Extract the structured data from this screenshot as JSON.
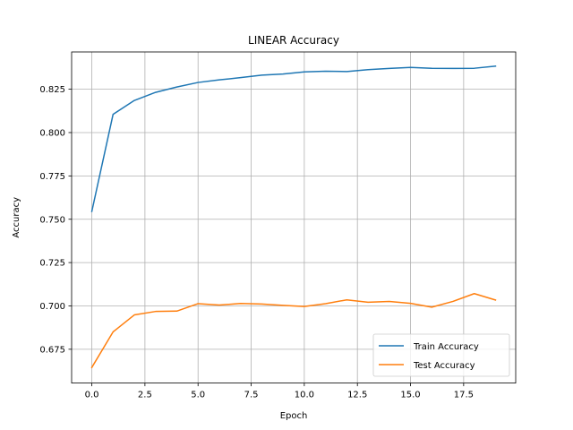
{
  "chart_data": {
    "type": "line",
    "title": "LINEAR Accuracy",
    "xlabel": "Epoch",
    "ylabel": "Accuracy",
    "xlim": [
      -0.95,
      19.95
    ],
    "ylim": [
      0.6555,
      0.8465
    ],
    "xticks": [
      0.0,
      2.5,
      5.0,
      7.5,
      10.0,
      12.5,
      15.0,
      17.5
    ],
    "xtick_labels": [
      "0.0",
      "2.5",
      "5.0",
      "7.5",
      "10.0",
      "12.5",
      "15.0",
      "17.5"
    ],
    "yticks": [
      0.675,
      0.7,
      0.725,
      0.75,
      0.775,
      0.8,
      0.825
    ],
    "ytick_labels": [
      "0.675",
      "0.700",
      "0.725",
      "0.750",
      "0.775",
      "0.800",
      "0.825"
    ],
    "grid": true,
    "legend_position": "lower-right",
    "x": [
      0,
      1,
      2,
      3,
      4,
      5,
      6,
      7,
      8,
      9,
      10,
      11,
      12,
      13,
      14,
      15,
      16,
      17,
      18,
      19
    ],
    "series": [
      {
        "name": "Train Accuracy",
        "color": "#1f77b4",
        "values": [
          0.7545,
          0.8105,
          0.8185,
          0.8232,
          0.8263,
          0.8289,
          0.8304,
          0.8317,
          0.8331,
          0.8338,
          0.835,
          0.8354,
          0.8352,
          0.8363,
          0.837,
          0.8376,
          0.8371,
          0.837,
          0.8371,
          0.8383
        ]
      },
      {
        "name": "Test Accuracy",
        "color": "#ff7f0e",
        "values": [
          0.6645,
          0.685,
          0.6948,
          0.6968,
          0.697,
          0.7013,
          0.7005,
          0.7014,
          0.7011,
          0.7003,
          0.6997,
          0.7013,
          0.7035,
          0.7021,
          0.7026,
          0.7015,
          0.6993,
          0.7026,
          0.7071,
          0.7034
        ]
      }
    ]
  }
}
